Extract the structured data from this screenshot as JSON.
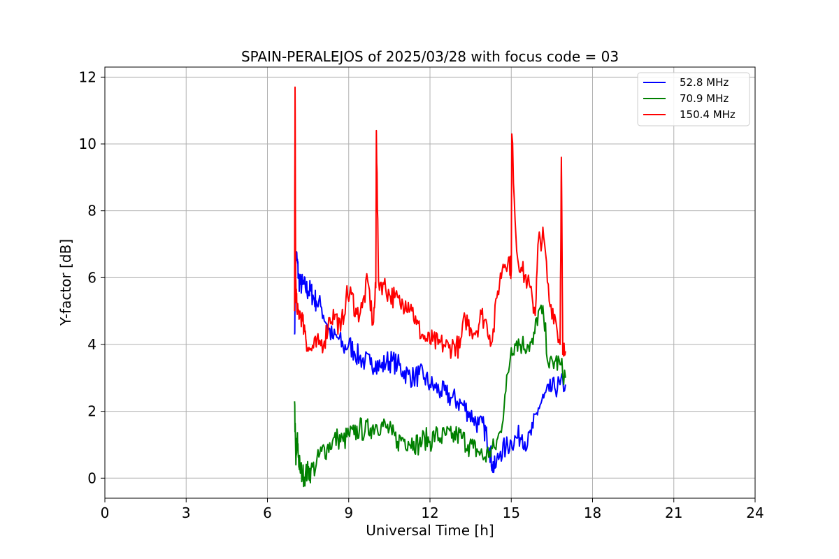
{
  "chart_data": {
    "type": "line",
    "title": "SPAIN-PERALEJOS of 2025/03/28 with focus code = 03",
    "xlabel": "Universal Time [h]",
    "ylabel": "Y-factor [dB]",
    "xlim": [
      0,
      24
    ],
    "ylim": [
      -0.6,
      12.3
    ],
    "xticks": [
      0,
      3,
      6,
      9,
      12,
      15,
      18,
      21,
      24
    ],
    "yticks": [
      0,
      2,
      4,
      6,
      8,
      10,
      12
    ],
    "grid": true,
    "legend_position": "top-right",
    "series": [
      {
        "name": "52.8 MHz",
        "color": "#0000ff",
        "x": [
          7.0,
          7.05,
          7.1,
          7.15,
          7.2,
          7.3,
          7.4,
          7.5,
          7.6,
          7.7,
          7.8,
          8.0,
          8.2,
          8.4,
          8.6,
          8.8,
          9.0,
          9.2,
          9.4,
          9.6,
          9.8,
          10.0,
          10.2,
          10.4,
          10.6,
          10.8,
          11.0,
          11.2,
          11.4,
          11.6,
          11.8,
          12.0,
          12.2,
          12.4,
          12.6,
          12.8,
          13.0,
          13.2,
          13.4,
          13.6,
          13.8,
          14.0,
          14.1,
          14.2,
          14.3,
          14.4,
          14.6,
          14.8,
          15.0,
          15.2,
          15.4,
          15.6,
          15.8,
          16.0,
          16.2,
          16.4,
          16.6,
          16.8,
          17.0
        ],
        "y": [
          4.3,
          6.7,
          6.5,
          6.0,
          5.8,
          5.8,
          5.7,
          5.6,
          5.6,
          5.4,
          5.3,
          5.1,
          4.6,
          4.2,
          4.2,
          3.9,
          4.0,
          3.8,
          3.6,
          3.5,
          3.4,
          3.5,
          3.3,
          3.5,
          3.5,
          3.4,
          3.2,
          3.1,
          3.0,
          3.1,
          3.0,
          2.8,
          2.7,
          2.6,
          2.5,
          2.4,
          2.3,
          2.2,
          2.0,
          1.8,
          1.6,
          1.5,
          1.2,
          0.9,
          0.4,
          0.3,
          0.8,
          0.9,
          1.1,
          1.2,
          1.3,
          1.0,
          1.5,
          2.1,
          2.4,
          2.6,
          2.7,
          2.8,
          2.8
        ]
      },
      {
        "name": "70.9 MHz",
        "color": "#008000",
        "x": [
          7.0,
          7.05,
          7.1,
          7.15,
          7.2,
          7.3,
          7.4,
          7.5,
          7.6,
          7.8,
          8.0,
          8.2,
          8.4,
          8.6,
          8.8,
          9.0,
          9.2,
          9.4,
          9.6,
          9.8,
          10.0,
          10.2,
          10.4,
          10.6,
          10.8,
          11.0,
          11.2,
          11.4,
          11.6,
          11.8,
          12.0,
          12.2,
          12.4,
          12.6,
          12.8,
          13.0,
          13.2,
          13.4,
          13.6,
          13.8,
          14.0,
          14.2,
          14.4,
          14.6,
          14.8,
          15.0,
          15.2,
          15.4,
          15.6,
          15.8,
          16.0,
          16.2,
          16.4,
          16.6,
          16.8,
          17.0
        ],
        "y": [
          2.3,
          0.4,
          1.2,
          0.6,
          0.3,
          0.1,
          0.1,
          0.2,
          0.2,
          0.4,
          0.8,
          0.9,
          1.1,
          1.2,
          1.1,
          1.3,
          1.3,
          1.5,
          1.4,
          1.5,
          1.6,
          1.6,
          1.5,
          1.3,
          1.1,
          1.2,
          1.1,
          1.1,
          1.0,
          1.2,
          1.1,
          1.3,
          1.2,
          1.3,
          1.2,
          1.3,
          1.2,
          1.0,
          0.9,
          0.8,
          0.6,
          0.8,
          0.9,
          1.4,
          2.6,
          3.9,
          4.1,
          4.0,
          4.0,
          4.0,
          5.0,
          4.8,
          3.3,
          3.5,
          3.4,
          3.0
        ]
      },
      {
        "name": "150.4 MHz",
        "color": "#ff0000",
        "x": [
          7.0,
          7.02,
          7.04,
          7.06,
          7.1,
          7.2,
          7.3,
          7.4,
          7.5,
          7.7,
          7.9,
          8.1,
          8.3,
          8.5,
          8.7,
          8.9,
          9.1,
          9.3,
          9.5,
          9.7,
          9.9,
          10.0,
          10.02,
          10.1,
          10.3,
          10.5,
          10.7,
          10.9,
          11.1,
          11.3,
          11.5,
          11.7,
          11.9,
          12.1,
          12.3,
          12.5,
          12.7,
          12.9,
          13.1,
          13.3,
          13.5,
          13.7,
          13.9,
          14.1,
          14.3,
          14.5,
          14.7,
          14.9,
          15.0,
          15.02,
          15.2,
          15.4,
          15.6,
          15.8,
          15.9,
          16.0,
          16.2,
          16.4,
          16.6,
          16.8,
          16.85,
          16.9,
          17.0
        ],
        "y": [
          5.0,
          11.7,
          6.0,
          5.5,
          4.9,
          5.0,
          4.7,
          4.4,
          3.8,
          3.9,
          4.0,
          4.1,
          4.8,
          4.9,
          4.4,
          5.4,
          5.5,
          4.9,
          5.1,
          5.9,
          4.6,
          5.7,
          10.4,
          5.9,
          5.8,
          5.5,
          5.4,
          5.2,
          5.3,
          5.2,
          4.6,
          4.3,
          4.1,
          4.1,
          4.0,
          4.0,
          3.9,
          4.0,
          3.9,
          4.8,
          4.5,
          4.4,
          4.9,
          4.6,
          4.1,
          5.6,
          6.4,
          6.6,
          6.2,
          10.3,
          6.8,
          6.2,
          5.9,
          5.2,
          5.1,
          7.1,
          7.2,
          5.3,
          4.9,
          4.0,
          9.6,
          3.7,
          3.8
        ]
      }
    ]
  }
}
